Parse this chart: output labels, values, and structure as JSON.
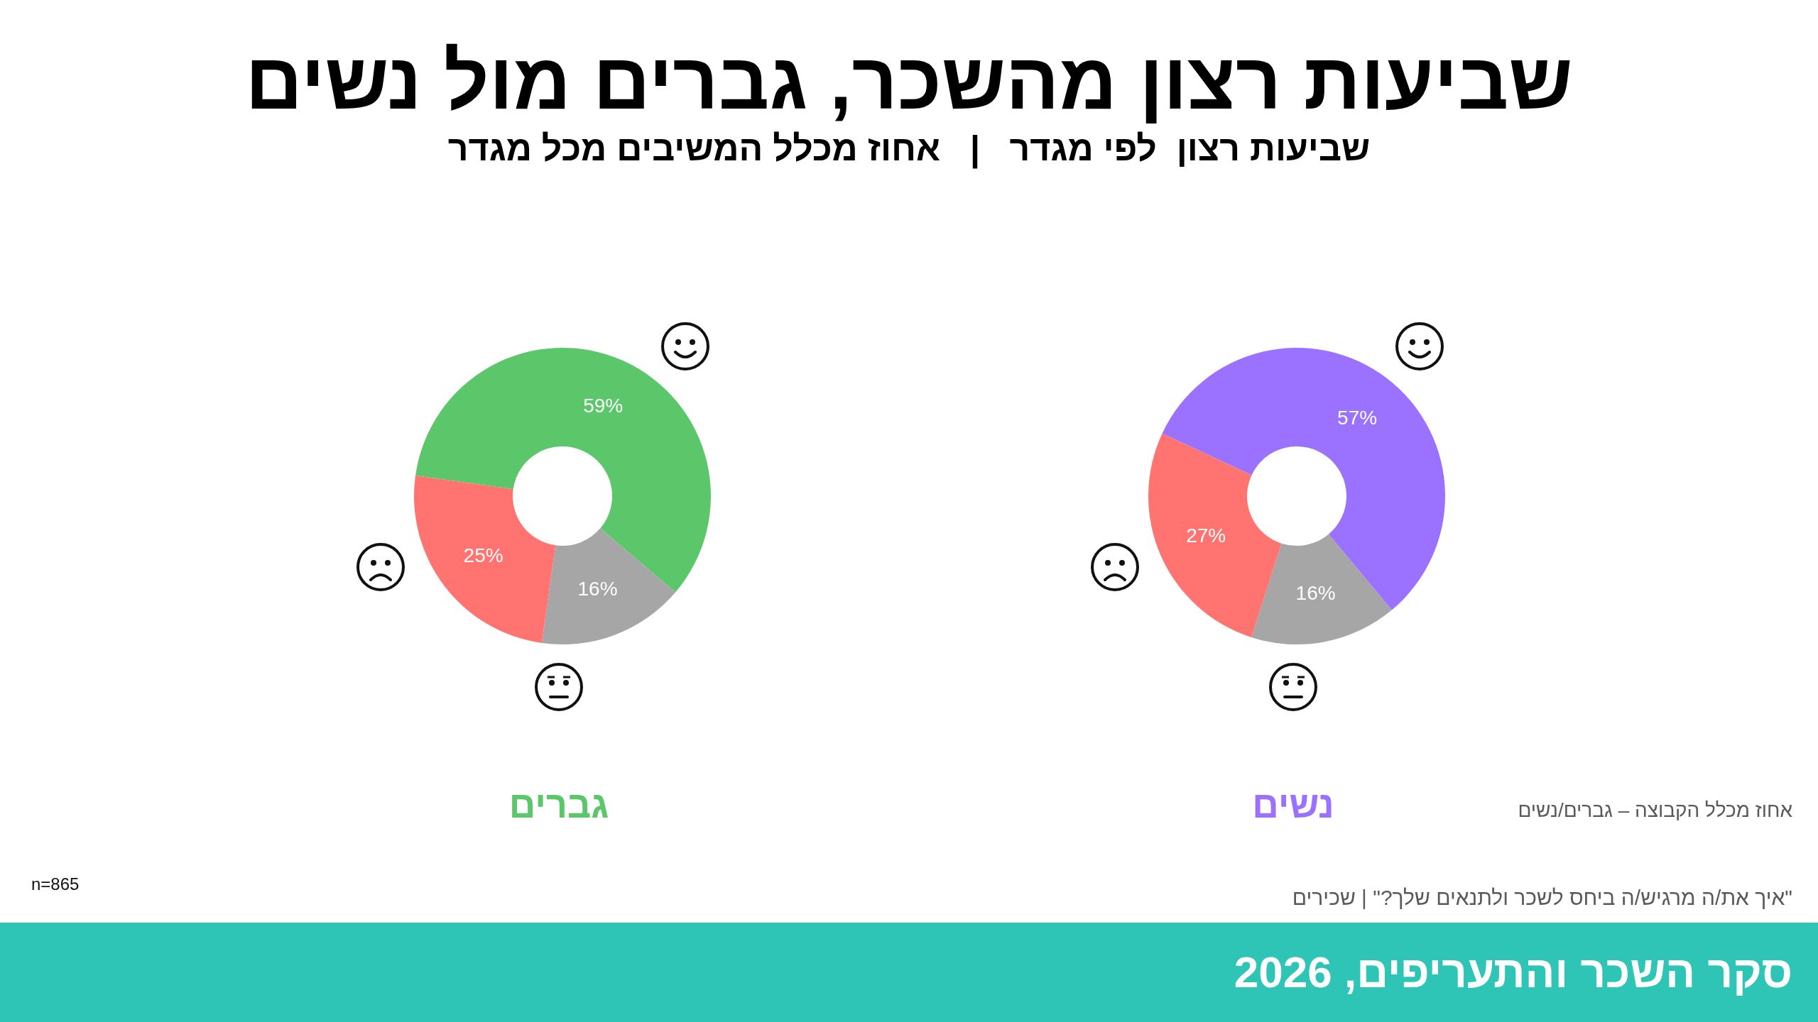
{
  "chart_data": [
    {
      "type": "donut",
      "title": "גברים",
      "categories": [
        null,
        null,
        null
      ],
      "values": [
        59,
        16,
        25
      ],
      "colors": [
        "#5cc76a",
        "#a6a6a6",
        "#ff7370"
      ],
      "value_labels": [
        "59%",
        "16%",
        "25%"
      ]
    },
    {
      "type": "donut",
      "title": "נשים",
      "categories": [
        null,
        null,
        null
      ],
      "values": [
        57,
        16,
        27
      ],
      "colors": [
        "#9b72ff",
        "#a6a6a6",
        "#ff7370"
      ],
      "value_labels": [
        "57%",
        "16%",
        "27%"
      ]
    },
    {
      "type": "other",
      "title": "שביעות רצון מהשכר, גברים מול נשים",
      "subtitle": "שביעות רצון  לפי מגדר   |   אחוז מכלל המשיבים מכל מגדר",
      "annotations": [
        "אחוז מכלל הקבוצה – גברים/נשים",
        "n=865",
        "\"איך את/ה מרגיש/ה ביחס לשכר ולתנאים שלך?\" | שכירים",
        "סקר השכר והתעריפים, 2026"
      ]
    }
  ]
}
